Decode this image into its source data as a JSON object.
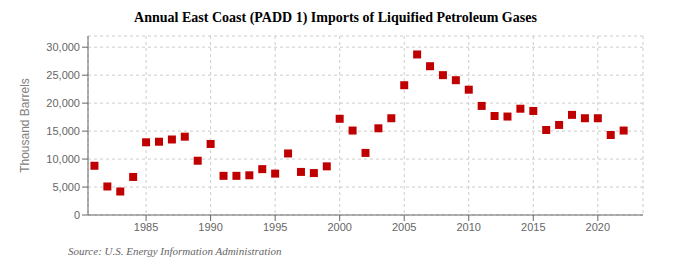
{
  "chart_data": {
    "type": "scatter",
    "title": "Annual East Coast (PADD 1) Imports of Liquified Petroleum Gases",
    "y_label": "Thousand Barrels",
    "annotation": "Source: U.S. Energy Information Administration",
    "x": [
      1981,
      1982,
      1983,
      1984,
      1985,
      1986,
      1987,
      1988,
      1989,
      1990,
      1991,
      1992,
      1993,
      1994,
      1995,
      1996,
      1997,
      1998,
      1999,
      2000,
      2001,
      2002,
      2003,
      2004,
      2005,
      2006,
      2007,
      2008,
      2009,
      2010,
      2011,
      2012,
      2013,
      2014,
      2015,
      2016,
      2017,
      2018,
      2019,
      2020,
      2021,
      2022
    ],
    "values": [
      8800,
      5100,
      4200,
      6800,
      13000,
      13100,
      13500,
      14000,
      9700,
      12700,
      7000,
      7000,
      7100,
      8200,
      7400,
      11000,
      7700,
      7500,
      8700,
      17200,
      15100,
      11100,
      15500,
      17300,
      23200,
      28700,
      26600,
      25000,
      24100,
      22400,
      19500,
      17700,
      17600,
      19000,
      18600,
      15200,
      16100,
      17900,
      17300,
      17300,
      14300,
      15100
    ],
    "color": "#c00000",
    "marker": "square",
    "xlim": [
      1980.5,
      2023.5
    ],
    "xticks": [
      1985,
      1990,
      1995,
      2000,
      2005,
      2010,
      2015,
      2020
    ],
    "ylim": [
      0,
      32000
    ],
    "yticks": [
      0,
      {
        "value": 5000,
        "label": "5,000"
      },
      {
        "value": 10000,
        "label": "10,000"
      },
      {
        "value": 15000,
        "label": "15,000"
      },
      {
        "value": 20000,
        "label": "20,000"
      },
      {
        "value": 25000,
        "label": "25,000"
      },
      {
        "value": 30000,
        "label": "30,000"
      }
    ],
    "grid": true
  }
}
